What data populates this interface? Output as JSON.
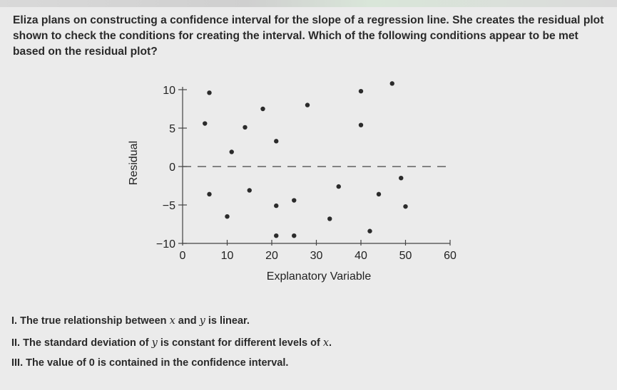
{
  "question": {
    "text": "Eliza plans on constructing a confidence interval for the slope of a regression line. She creates the residual plot shown to check the conditions for creating the interval. Which of the following conditions appear to be met based on the residual plot?"
  },
  "chart_data": {
    "type": "scatter",
    "title": "",
    "xlabel": "Explanatory Variable",
    "ylabel": "Residual",
    "xlim": [
      0,
      60
    ],
    "ylim": [
      -10,
      10
    ],
    "x_ticks": [
      "0",
      "10",
      "20",
      "30",
      "40",
      "50",
      "60"
    ],
    "y_ticks": [
      "10",
      "5",
      "0",
      "−5",
      "−10"
    ],
    "reference_line": {
      "y": 0,
      "style": "dashed"
    },
    "points": [
      {
        "x": 6,
        "y": 9.6
      },
      {
        "x": 5,
        "y": 5.6
      },
      {
        "x": 14,
        "y": 5.1
      },
      {
        "x": 18,
        "y": 7.5
      },
      {
        "x": 28,
        "y": 8.0
      },
      {
        "x": 11,
        "y": 1.9
      },
      {
        "x": 21,
        "y": 3.3
      },
      {
        "x": 40,
        "y": 9.8
      },
      {
        "x": 47,
        "y": 10.8
      },
      {
        "x": 40,
        "y": 5.4
      },
      {
        "x": 49,
        "y": -1.5
      },
      {
        "x": 35,
        "y": -2.6
      },
      {
        "x": 6,
        "y": -3.6
      },
      {
        "x": 15,
        "y": -3.1
      },
      {
        "x": 21,
        "y": -5.1
      },
      {
        "x": 25,
        "y": -4.4
      },
      {
        "x": 44,
        "y": -3.6
      },
      {
        "x": 50,
        "y": -5.2
      },
      {
        "x": 10,
        "y": -6.5
      },
      {
        "x": 33,
        "y": -6.8
      },
      {
        "x": 42,
        "y": -8.4
      },
      {
        "x": 21,
        "y": -9.0
      },
      {
        "x": 25,
        "y": -9.0
      }
    ],
    "grid": false,
    "marker_color": "#2b2b2b"
  },
  "options": [
    {
      "numeral": "I.",
      "pre": "The true relationship between",
      "v1": "x",
      "mid": "and",
      "v2": "y",
      "post": "is linear."
    },
    {
      "numeral": "II.",
      "pre": "The standard deviation of",
      "v1": "y",
      "mid": "is constant for different levels of",
      "v2": "x",
      "post": "."
    },
    {
      "numeral": "III.",
      "text": "The value of 0 is contained in the confidence interval."
    }
  ]
}
